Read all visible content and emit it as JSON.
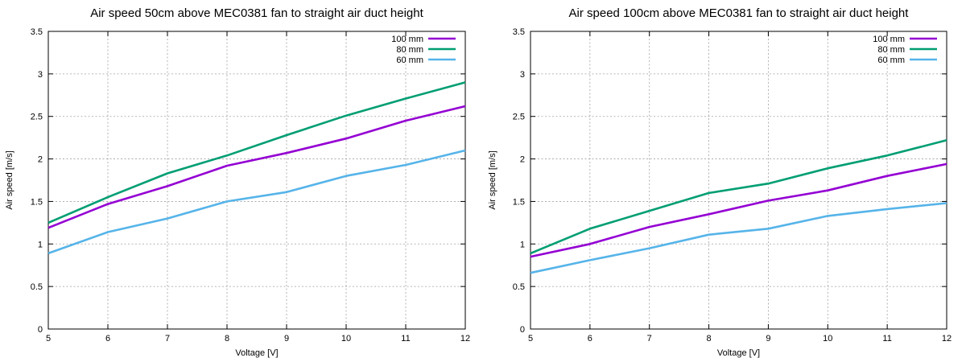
{
  "colors": {
    "s100": "#9400d3",
    "s80": "#009e73",
    "s60": "#56b4e9"
  },
  "chart_data": [
    {
      "type": "line",
      "title": "Air speed 50cm above MEC0381 fan to straight air duct height",
      "xlabel": "Voltage [V]",
      "ylabel": "Air speed [m/s]",
      "xlim": [
        5,
        12
      ],
      "ylim": [
        0,
        3.5
      ],
      "x_ticks": [
        "5",
        "6",
        "7",
        "8",
        "9",
        "10",
        "11",
        "12"
      ],
      "y_ticks": [
        "0",
        "0.5",
        "1",
        "1.5",
        "2",
        "2.5",
        "3",
        "3.5"
      ],
      "grid": true,
      "legend_position": "top-right",
      "x": [
        5,
        6,
        7,
        8,
        9,
        10,
        11,
        12
      ],
      "series": [
        {
          "name": "100 mm",
          "color_key": "s100",
          "values": [
            1.19,
            1.47,
            1.68,
            1.92,
            2.07,
            2.24,
            2.45,
            2.62
          ]
        },
        {
          "name": "80 mm",
          "color_key": "s80",
          "values": [
            1.25,
            1.55,
            1.83,
            2.04,
            2.28,
            2.51,
            2.71,
            2.9
          ]
        },
        {
          "name": "60 mm",
          "color_key": "s60",
          "values": [
            0.89,
            1.14,
            1.3,
            1.5,
            1.61,
            1.8,
            1.93,
            2.1
          ]
        }
      ]
    },
    {
      "type": "line",
      "title": "Air speed 100cm above MEC0381 fan to straight air duct height",
      "xlabel": "Voltage [V]",
      "ylabel": "Air speed [m/s]",
      "xlim": [
        5,
        12
      ],
      "ylim": [
        0,
        3.5
      ],
      "x_ticks": [
        "5",
        "6",
        "7",
        "8",
        "9",
        "10",
        "11",
        "12"
      ],
      "y_ticks": [
        "0",
        "0.5",
        "1",
        "1.5",
        "2",
        "2.5",
        "3",
        "3.5"
      ],
      "grid": true,
      "legend_position": "top-right",
      "x": [
        5,
        6,
        7,
        8,
        9,
        10,
        11,
        12
      ],
      "series": [
        {
          "name": "100 mm",
          "color_key": "s100",
          "values": [
            0.85,
            1.0,
            1.2,
            1.35,
            1.51,
            1.63,
            1.8,
            1.94
          ]
        },
        {
          "name": "80 mm",
          "color_key": "s80",
          "values": [
            0.89,
            1.18,
            1.39,
            1.6,
            1.71,
            1.89,
            2.04,
            2.22
          ]
        },
        {
          "name": "60 mm",
          "color_key": "s60",
          "values": [
            0.66,
            0.81,
            0.95,
            1.11,
            1.18,
            1.33,
            1.41,
            1.48
          ]
        }
      ]
    }
  ]
}
